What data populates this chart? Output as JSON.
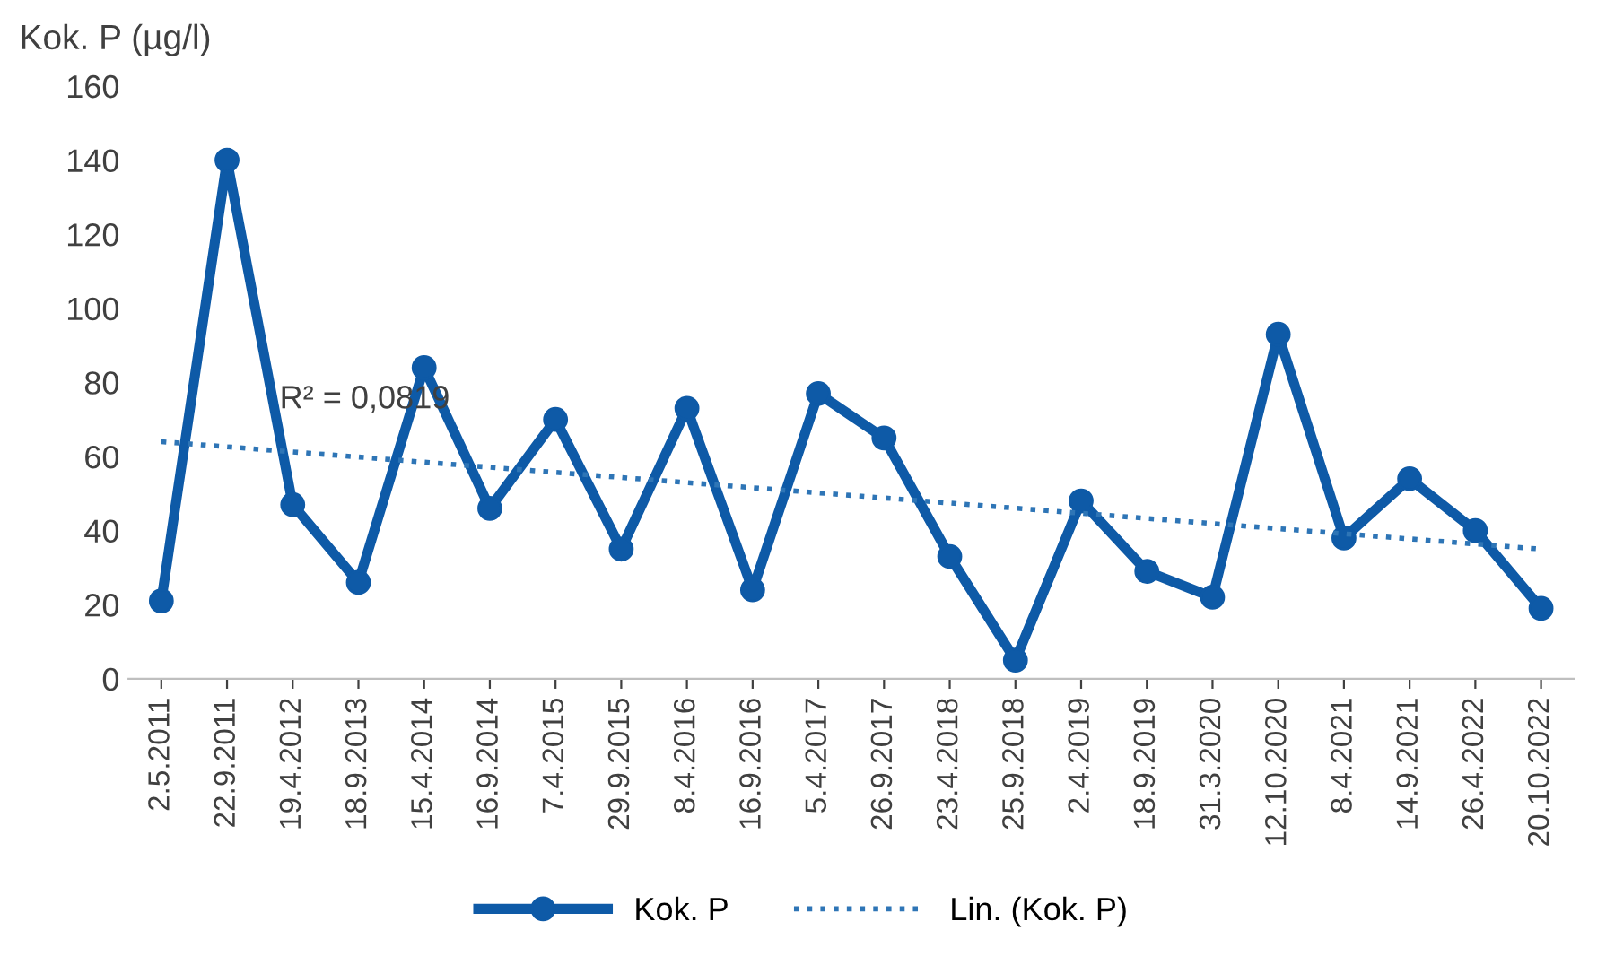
{
  "chart_data": {
    "type": "line",
    "ylabel": "Kok. P (µg/l)",
    "categories": [
      "2.5.2011",
      "22.9.2011",
      "19.4.2012",
      "18.9.2013",
      "15.4.2014",
      "16.9.2014",
      "7.4.2015",
      "29.9.2015",
      "8.4.2016",
      "16.9.2016",
      "5.4.2017",
      "26.9.2017",
      "23.4.2018",
      "25.9.2018",
      "2.4.2019",
      "18.9.2019",
      "31.3.2020",
      "12.10.2020",
      "8.4.2021",
      "14.9.2021",
      "26.4.2022",
      "20.10.2022"
    ],
    "series": [
      {
        "name": "Kok. P",
        "color": "#0e5aa7",
        "marker": "circle",
        "line_style": "solid",
        "values": [
          21,
          140,
          47,
          26,
          84,
          46,
          70,
          35,
          73,
          24,
          77,
          65,
          33,
          5,
          48,
          29,
          22,
          93,
          38,
          54,
          40,
          19
        ]
      },
      {
        "name": "Lin. (Kok. P)",
        "type": "line",
        "color": "#2e75b6",
        "marker": "none",
        "line_style": "dotted",
        "x": [
          "2.5.2011",
          "20.10.2022"
        ],
        "values": [
          64,
          35
        ]
      }
    ],
    "annotations": [
      "R² = 0,0819"
    ],
    "ylim": [
      0,
      160
    ],
    "yticks": [
      0,
      20,
      40,
      60,
      80,
      100,
      120,
      140,
      160
    ],
    "grid": false,
    "legend": "bottom"
  }
}
